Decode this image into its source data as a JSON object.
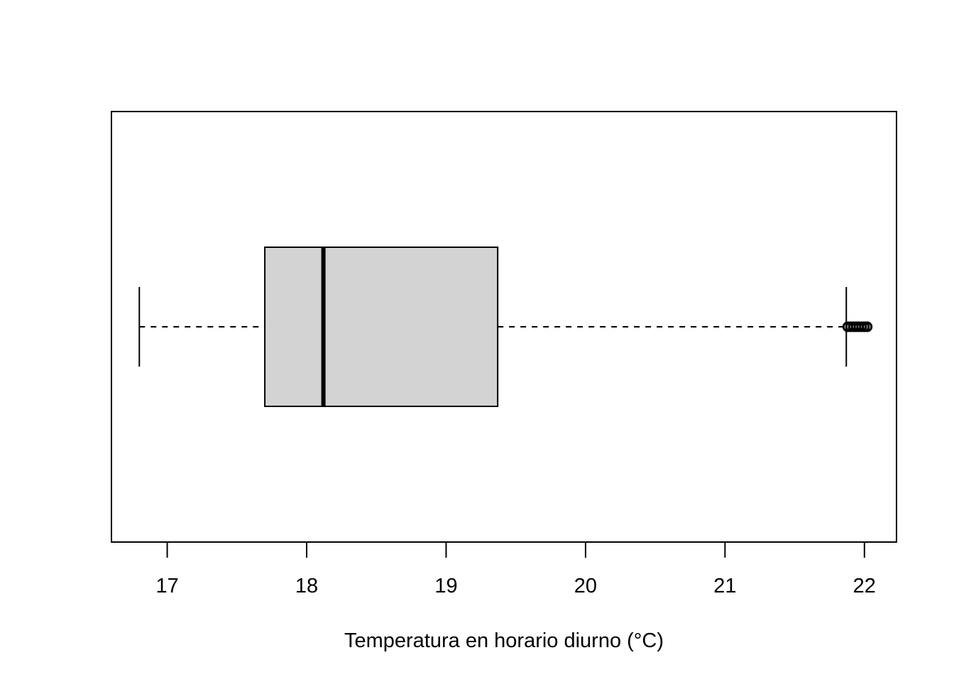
{
  "chart_data": {
    "type": "boxplot",
    "orientation": "horizontal",
    "title": "",
    "xlabel": "Temperatura en horario diurno (°C)",
    "ylabel": "",
    "xlim": [
      16.6,
      22.23
    ],
    "xticks": [
      17,
      18,
      19,
      20,
      21,
      22
    ],
    "xtick_labels": [
      "17",
      "18",
      "19",
      "20",
      "21",
      "22"
    ],
    "grid": false,
    "legend": "none",
    "box": {
      "whisker_low": 16.8,
      "q1": 17.7,
      "median": 18.12,
      "q3": 19.37,
      "whisker_high": 21.87
    },
    "outliers": [
      21.88,
      21.9,
      21.92,
      21.94,
      21.96,
      21.98,
      22.0,
      22.02
    ],
    "colors": {
      "box_fill": "#d3d3d3",
      "stroke": "#000000",
      "background": "#ffffff"
    }
  }
}
